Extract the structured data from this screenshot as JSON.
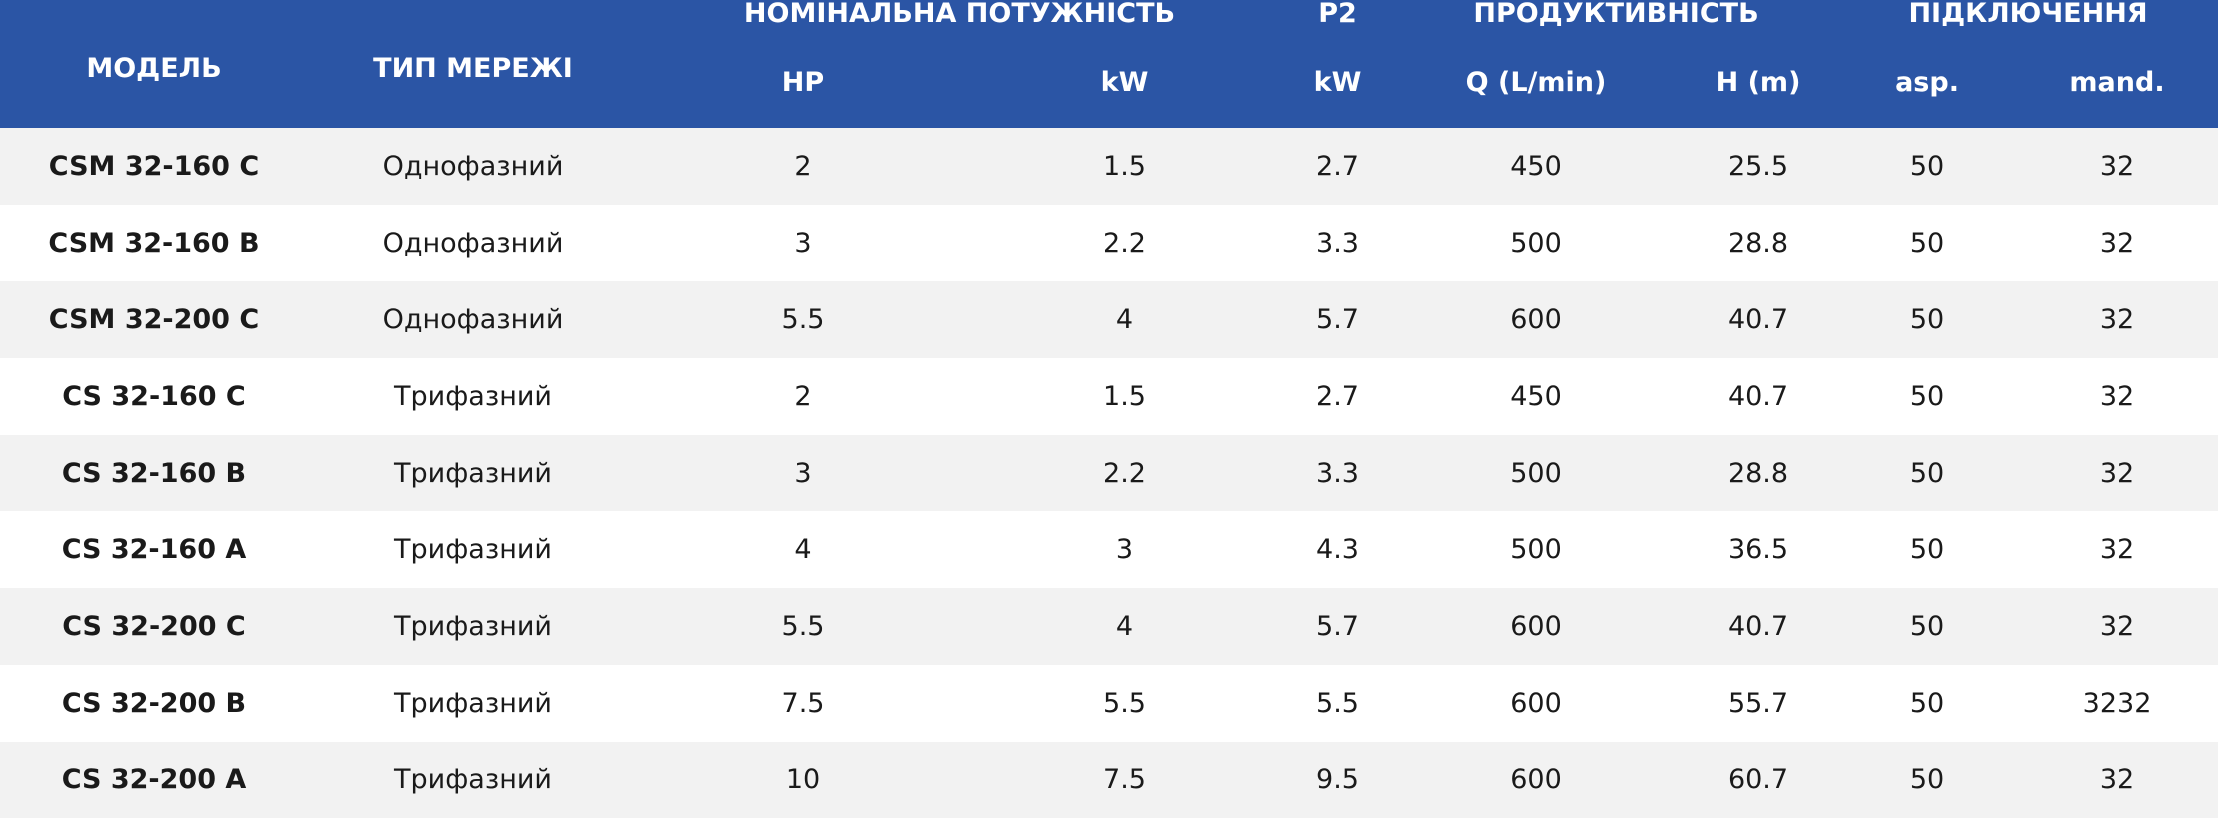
{
  "header": {
    "model": "МОДЕЛЬ",
    "network_type": "ТИП МЕРЕЖІ",
    "nominal_power": "НОМІНАЛЬНА ПОТУЖНІСТЬ",
    "p2": "P2",
    "productivity": "ПРОДУКТИВНІСТЬ",
    "connection": "ПІДКЛЮЧЕННЯ",
    "hp": "HP",
    "kw": "kW",
    "p2_kw": "kW",
    "q": "Q (L/min)",
    "h": "H (m)",
    "asp": "asp.",
    "mand": "mand."
  },
  "colors": {
    "header_bg": "#2b55a5",
    "header_text": "#ffffff",
    "row_alt": "#f2f2f2",
    "row": "#ffffff"
  },
  "rows": [
    {
      "model": "CSM 32-160 C",
      "network": "Однофазний",
      "hp": "2",
      "kw": "1.5",
      "p2": "2.7",
      "q": "450",
      "h": "25.5",
      "asp": "50",
      "mand": "32"
    },
    {
      "model": "CSM 32-160 B",
      "network": "Однофазний",
      "hp": "3",
      "kw": "2.2",
      "p2": "3.3",
      "q": "500",
      "h": "28.8",
      "asp": "50",
      "mand": "32"
    },
    {
      "model": "CSM 32-200 C",
      "network": "Однофазний",
      "hp": "5.5",
      "kw": "4",
      "p2": "5.7",
      "q": "600",
      "h": "40.7",
      "asp": "50",
      "mand": "32"
    },
    {
      "model": "CS 32-160 C",
      "network": "Трифазний",
      "hp": "2",
      "kw": "1.5",
      "p2": "2.7",
      "q": "450",
      "h": "40.7",
      "asp": "50",
      "mand": "32"
    },
    {
      "model": "CS 32-160 B",
      "network": "Трифазний",
      "hp": "3",
      "kw": "2.2",
      "p2": "3.3",
      "q": "500",
      "h": "28.8",
      "asp": "50",
      "mand": "32"
    },
    {
      "model": "CS 32-160 A",
      "network": "Трифазний",
      "hp": "4",
      "kw": "3",
      "p2": "4.3",
      "q": "500",
      "h": "36.5",
      "asp": "50",
      "mand": "32"
    },
    {
      "model": "CS 32-200 C",
      "network": "Трифазний",
      "hp": "5.5",
      "kw": "4",
      "p2": "5.7",
      "q": "600",
      "h": "40.7",
      "asp": "50",
      "mand": "32"
    },
    {
      "model": "CS 32-200 B",
      "network": "Трифазний",
      "hp": "7.5",
      "kw": "5.5",
      "p2": "5.5",
      "q": "600",
      "h": "55.7",
      "asp": "50",
      "mand": "3232"
    },
    {
      "model": "CS 32-200 A",
      "network": "Трифазний",
      "hp": "10",
      "kw": "7.5",
      "p2": "9.5",
      "q": "600",
      "h": "60.7",
      "asp": "50",
      "mand": "32"
    }
  ]
}
